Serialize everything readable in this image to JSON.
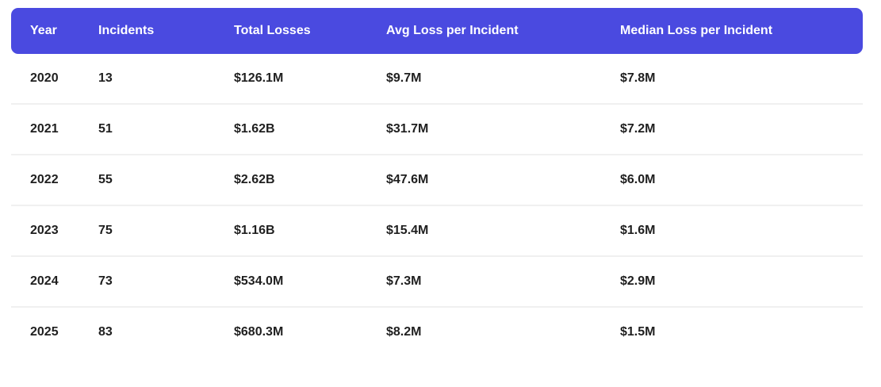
{
  "table": {
    "columns": [
      {
        "label": "Year"
      },
      {
        "label": "Incidents"
      },
      {
        "label": "Total Losses"
      },
      {
        "label": "Avg Loss per Incident"
      },
      {
        "label": "Median Loss per Incident"
      }
    ],
    "row_keys": [
      "year",
      "incidents",
      "total_losses",
      "avg_loss_per_incident",
      "median_loss_per_incident"
    ],
    "rows": [
      {
        "year": "2020",
        "incidents": "13",
        "total_losses": "$126.1M",
        "avg_loss_per_incident": "$9.7M",
        "median_loss_per_incident": "$7.8M"
      },
      {
        "year": "2021",
        "incidents": "51",
        "total_losses": "$1.62B",
        "avg_loss_per_incident": "$31.7M",
        "median_loss_per_incident": "$7.2M"
      },
      {
        "year": "2022",
        "incidents": "55",
        "total_losses": "$2.62B",
        "avg_loss_per_incident": "$47.6M",
        "median_loss_per_incident": "$6.0M"
      },
      {
        "year": "2023",
        "incidents": "75",
        "total_losses": "$1.16B",
        "avg_loss_per_incident": "$15.4M",
        "median_loss_per_incident": "$1.6M"
      },
      {
        "year": "2024",
        "incidents": "73",
        "total_losses": "$534.0M",
        "avg_loss_per_incident": "$7.3M",
        "median_loss_per_incident": "$2.9M"
      },
      {
        "year": "2025",
        "incidents": "83",
        "total_losses": "$680.3M",
        "avg_loss_per_incident": "$8.2M",
        "median_loss_per_incident": "$1.5M"
      }
    ]
  },
  "colors": {
    "header_bg": "#4a4ae0",
    "header_text": "#ffffff",
    "cell_text": "#1f1f1f",
    "row_divider": "#f0f0f0",
    "page_bg": "#ffffff"
  }
}
